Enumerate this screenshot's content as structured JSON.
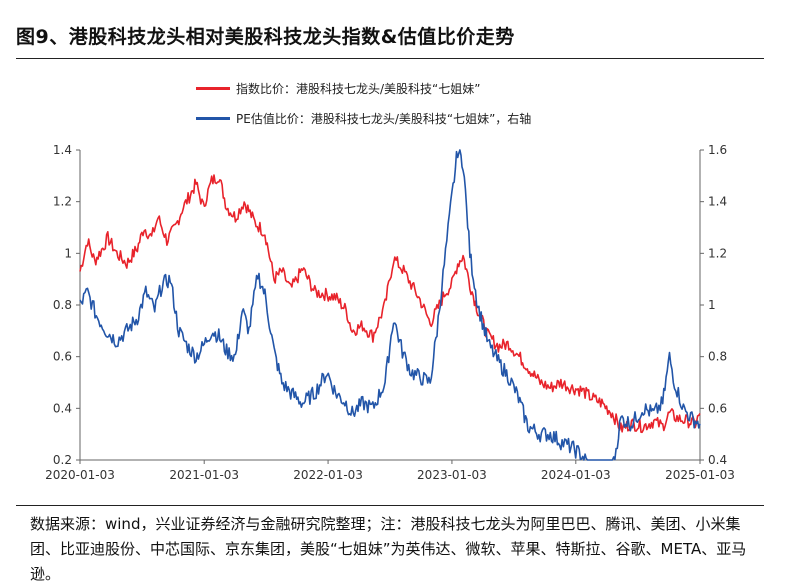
{
  "title": "图9、港股科技龙头相对美股科技龙头指数&估值比价走势",
  "legend": {
    "series1": "指数比价：港股科技七龙头/美股科技“七姐妹”",
    "series2": "PE估值比价：港股科技七龙头/美股科技“七姐妹”，右轴"
  },
  "note": "数据来源：wind，兴业证券经济与金融研究院整理；注：港股科技七龙头为阿里巴巴、腾讯、美团、小米集团、比亚迪股份、中芯国际、京东集团，美股“七姐妹”为英伟达、微软、苹果、特斯拉、谷歌、META、亚马逊。",
  "colors": {
    "series1": "#e8232b",
    "series2": "#2255a8"
  },
  "chart_data": {
    "type": "line",
    "x_ticks": [
      "2020-01-03",
      "2021-01-03",
      "2022-01-03",
      "2023-01-03",
      "2024-01-03",
      "2025-01-03"
    ],
    "x_range": [
      "2020-01-03",
      "2025-01-03"
    ],
    "y_left": {
      "range": [
        0.2,
        1.4
      ],
      "ticks": [
        "0.2",
        "0.4",
        "0.6",
        "0.8",
        "1",
        "1.2",
        "1.4"
      ]
    },
    "y_right": {
      "range": [
        0.4,
        1.6
      ],
      "ticks": [
        "0.4",
        "0.6",
        "0.8",
        "1",
        "1.2",
        "1.4",
        "1.6"
      ]
    },
    "grid": false,
    "legend_position": "top",
    "series": [
      {
        "name": "指数比价：港股科技七龙头/美股科技“七姐妹”",
        "axis": "left",
        "points": [
          [
            "2020-01-03",
            0.93
          ],
          [
            "2020-01-25",
            1.05
          ],
          [
            "2020-02-15",
            0.97
          ],
          [
            "2020-03-10",
            1.02
          ],
          [
            "2020-03-25",
            1.06
          ],
          [
            "2020-04-20",
            1.0
          ],
          [
            "2020-05-20",
            0.96
          ],
          [
            "2020-06-20",
            1.02
          ],
          [
            "2020-07-10",
            1.1
          ],
          [
            "2020-08-01",
            1.06
          ],
          [
            "2020-08-20",
            1.14
          ],
          [
            "2020-09-15",
            1.05
          ],
          [
            "2020-10-10",
            1.1
          ],
          [
            "2020-10-30",
            1.17
          ],
          [
            "2020-11-20",
            1.22
          ],
          [
            "2020-12-10",
            1.27
          ],
          [
            "2020-12-31",
            1.18
          ],
          [
            "2021-01-25",
            1.28
          ],
          [
            "2021-02-15",
            1.3
          ],
          [
            "2021-03-10",
            1.18
          ],
          [
            "2021-04-05",
            1.14
          ],
          [
            "2021-05-01",
            1.2
          ],
          [
            "2021-06-01",
            1.12
          ],
          [
            "2021-07-01",
            1.08
          ],
          [
            "2021-07-28",
            0.9
          ],
          [
            "2021-08-20",
            0.93
          ],
          [
            "2021-09-15",
            0.86
          ],
          [
            "2021-10-20",
            0.94
          ],
          [
            "2021-11-25",
            0.85
          ],
          [
            "2021-12-31",
            0.84
          ],
          [
            "2022-01-25",
            0.83
          ],
          [
            "2022-02-25",
            0.78
          ],
          [
            "2022-03-15",
            0.7
          ],
          [
            "2022-04-15",
            0.72
          ],
          [
            "2022-05-15",
            0.68
          ],
          [
            "2022-06-20",
            0.8
          ],
          [
            "2022-07-15",
            0.98
          ],
          [
            "2022-08-10",
            0.94
          ],
          [
            "2022-09-05",
            0.88
          ],
          [
            "2022-10-01",
            0.82
          ],
          [
            "2022-10-31",
            0.73
          ],
          [
            "2022-11-20",
            0.78
          ],
          [
            "2022-12-15",
            0.85
          ],
          [
            "2023-01-03",
            0.88
          ],
          [
            "2023-01-20",
            0.96
          ],
          [
            "2023-02-05",
            0.99
          ],
          [
            "2023-02-25",
            0.88
          ],
          [
            "2023-03-20",
            0.78
          ],
          [
            "2023-04-20",
            0.68
          ],
          [
            "2023-05-20",
            0.64
          ],
          [
            "2023-06-20",
            0.65
          ],
          [
            "2023-07-20",
            0.6
          ],
          [
            "2023-08-20",
            0.55
          ],
          [
            "2023-09-20",
            0.5
          ],
          [
            "2023-10-20",
            0.48
          ],
          [
            "2023-11-20",
            0.5
          ],
          [
            "2023-12-20",
            0.48
          ],
          [
            "2024-01-20",
            0.47
          ],
          [
            "2024-02-20",
            0.44
          ],
          [
            "2024-03-20",
            0.42
          ],
          [
            "2024-04-20",
            0.38
          ],
          [
            "2024-05-15",
            0.32
          ],
          [
            "2024-06-15",
            0.34
          ],
          [
            "2024-07-20",
            0.33
          ],
          [
            "2024-08-20",
            0.35
          ],
          [
            "2024-09-15",
            0.33
          ],
          [
            "2024-10-05",
            0.38
          ],
          [
            "2024-10-31",
            0.36
          ],
          [
            "2024-11-30",
            0.35
          ],
          [
            "2024-12-20",
            0.34
          ],
          [
            "2025-01-03",
            0.38
          ]
        ]
      },
      {
        "name": "PE估值比价：港股科技七龙头/美股科技“七姐妹”，右轴",
        "axis": "right",
        "points": [
          [
            "2020-01-03",
            1.0
          ],
          [
            "2020-01-25",
            1.05
          ],
          [
            "2020-02-20",
            0.96
          ],
          [
            "2020-03-20",
            0.9
          ],
          [
            "2020-04-20",
            0.86
          ],
          [
            "2020-05-20",
            0.9
          ],
          [
            "2020-06-20",
            0.95
          ],
          [
            "2020-07-15",
            1.05
          ],
          [
            "2020-08-10",
            0.98
          ],
          [
            "2020-09-01",
            1.08
          ],
          [
            "2020-09-25",
            1.1
          ],
          [
            "2020-10-20",
            0.9
          ],
          [
            "2020-11-15",
            0.84
          ],
          [
            "2020-12-10",
            0.8
          ],
          [
            "2020-12-31",
            0.84
          ],
          [
            "2021-01-25",
            0.9
          ],
          [
            "2021-02-15",
            0.88
          ],
          [
            "2021-03-10",
            0.82
          ],
          [
            "2021-04-05",
            0.8
          ],
          [
            "2021-04-25",
            0.98
          ],
          [
            "2021-05-15",
            0.9
          ],
          [
            "2021-06-10",
            1.12
          ],
          [
            "2021-07-01",
            1.04
          ],
          [
            "2021-07-28",
            0.82
          ],
          [
            "2021-08-20",
            0.7
          ],
          [
            "2021-09-15",
            0.66
          ],
          [
            "2021-10-20",
            0.62
          ],
          [
            "2021-11-25",
            0.66
          ],
          [
            "2021-12-31",
            0.74
          ],
          [
            "2022-01-25",
            0.66
          ],
          [
            "2022-02-25",
            0.62
          ],
          [
            "2022-03-15",
            0.58
          ],
          [
            "2022-04-15",
            0.62
          ],
          [
            "2022-05-15",
            0.6
          ],
          [
            "2022-06-20",
            0.7
          ],
          [
            "2022-07-15",
            0.95
          ],
          [
            "2022-08-10",
            0.82
          ],
          [
            "2022-09-05",
            0.74
          ],
          [
            "2022-10-01",
            0.72
          ],
          [
            "2022-10-31",
            0.7
          ],
          [
            "2022-11-20",
            0.9
          ],
          [
            "2022-12-15",
            1.2
          ],
          [
            "2023-01-03",
            1.42
          ],
          [
            "2023-01-20",
            1.6
          ],
          [
            "2023-02-05",
            1.55
          ],
          [
            "2023-02-25",
            1.2
          ],
          [
            "2023-03-20",
            1.0
          ],
          [
            "2023-04-20",
            0.85
          ],
          [
            "2023-05-20",
            0.78
          ],
          [
            "2023-06-20",
            0.72
          ],
          [
            "2023-07-15",
            0.65
          ],
          [
            "2023-08-15",
            0.53
          ],
          [
            "2023-09-20",
            0.5
          ],
          [
            "2023-10-20",
            0.5
          ],
          [
            "2023-11-20",
            0.47
          ],
          [
            "2023-12-20",
            0.45
          ],
          [
            "2024-01-20",
            0.42
          ],
          [
            "2024-02-20",
            0.36
          ],
          [
            "2024-03-20",
            0.34
          ],
          [
            "2024-04-20",
            0.36
          ],
          [
            "2024-05-15",
            0.56
          ],
          [
            "2024-06-15",
            0.54
          ],
          [
            "2024-07-20",
            0.6
          ],
          [
            "2024-08-20",
            0.58
          ],
          [
            "2024-09-15",
            0.62
          ],
          [
            "2024-10-05",
            0.8
          ],
          [
            "2024-10-20",
            0.7
          ],
          [
            "2024-11-15",
            0.6
          ],
          [
            "2024-12-10",
            0.56
          ],
          [
            "2025-01-03",
            0.54
          ]
        ]
      }
    ]
  }
}
